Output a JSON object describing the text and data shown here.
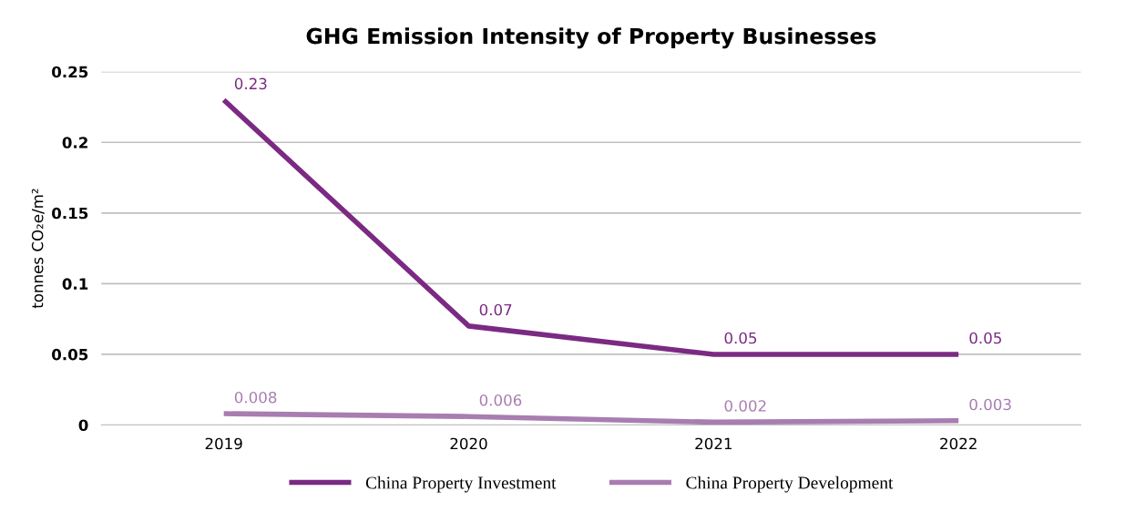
{
  "chart_data": {
    "type": "line",
    "title": "GHG Emission Intensity of Property Businesses",
    "ylabel": "tonnes CO₂e/m²",
    "categories": [
      "2019",
      "2020",
      "2021",
      "2022"
    ],
    "series": [
      {
        "name": "China Property Investment",
        "color": "#7b2a83",
        "values": [
          0.23,
          0.07,
          0.05,
          0.05
        ]
      },
      {
        "name": "China Property Development",
        "color": "#a87db0",
        "values": [
          0.008,
          0.006,
          0.002,
          0.003
        ]
      }
    ],
    "ylim": [
      0,
      0.25
    ],
    "yticks": [
      0,
      {
        "value": 0.05,
        "label": "0.05"
      },
      {
        "value": 0.1,
        "label": "0.1"
      },
      {
        "value": 0.15,
        "label": "0.15"
      },
      {
        "value": 0.2,
        "label": "0.2"
      },
      {
        "value": 0.25,
        "label": "0.25"
      }
    ],
    "grid": "y",
    "legend": "bottom",
    "marker": "none",
    "line_style": "solid",
    "data_labels": true
  }
}
